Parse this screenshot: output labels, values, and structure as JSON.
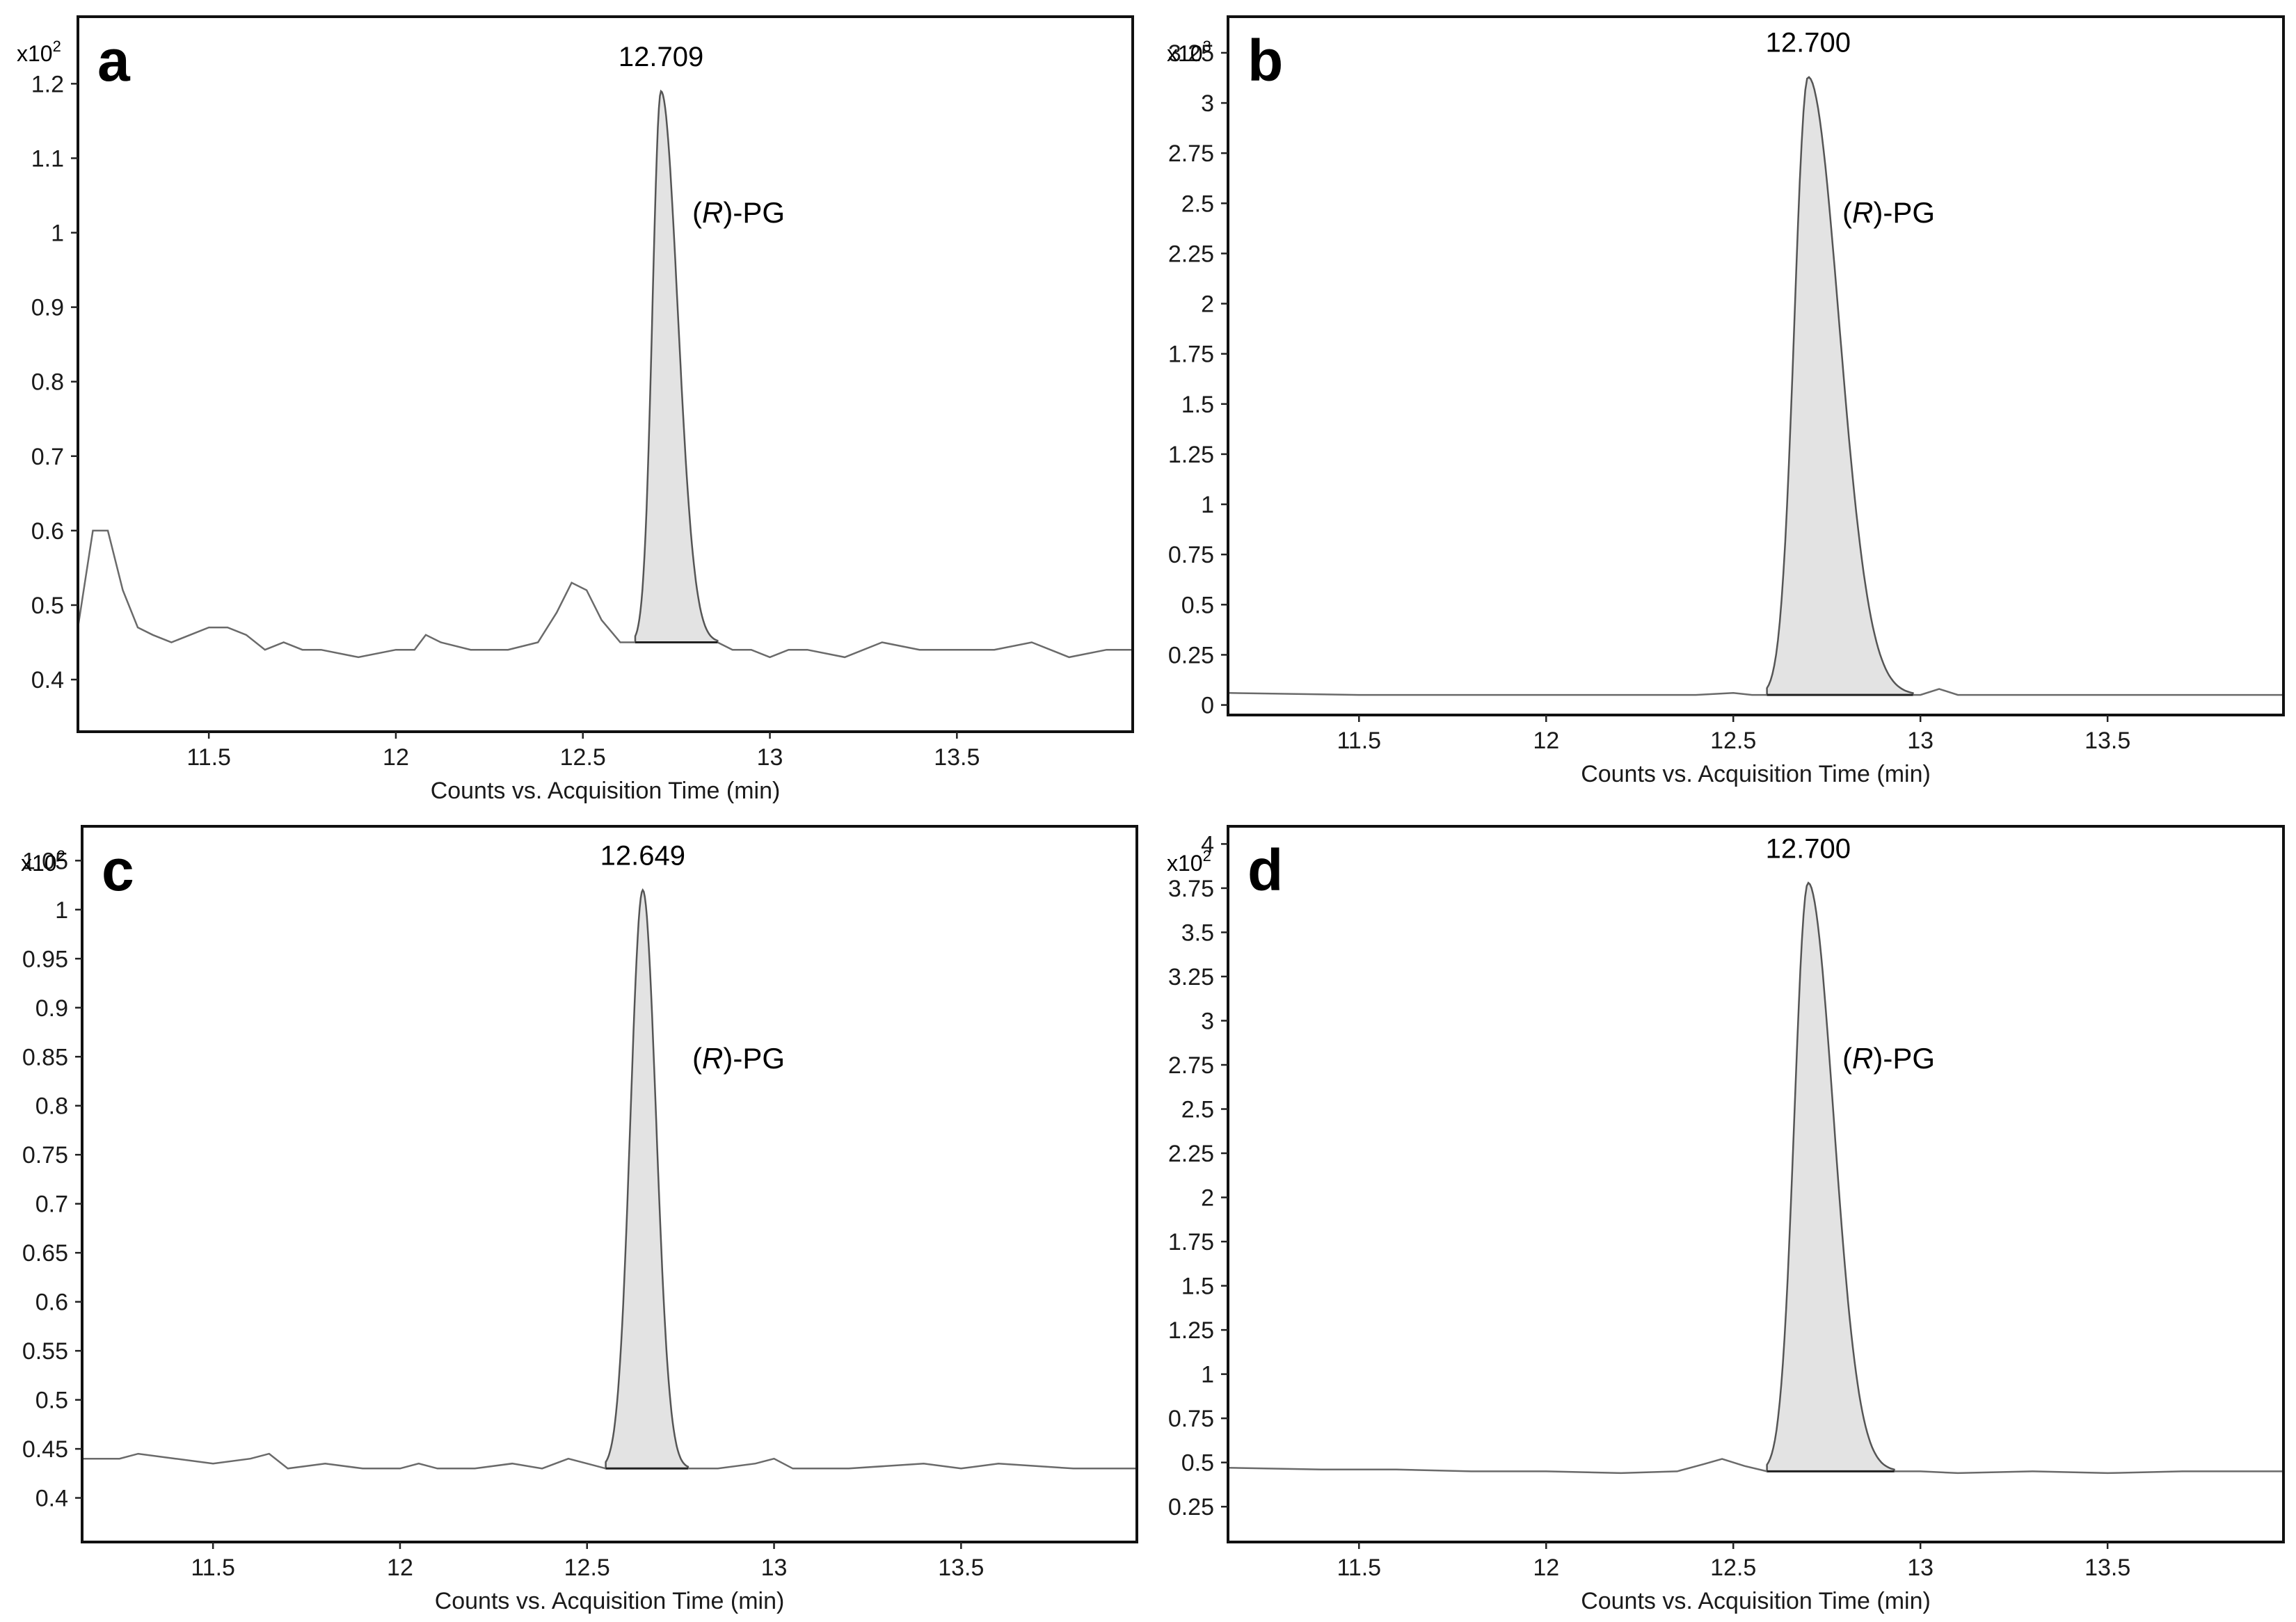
{
  "chart_data": [
    {
      "type": "line",
      "panel": "a",
      "exponent_base": "x10",
      "exponent_power": "2",
      "xlabel": "Counts vs. Acquisition Time (min)",
      "xlim": [
        11.15,
        13.97
      ],
      "ylim": [
        0.33,
        1.29
      ],
      "xticks": [
        "11.5",
        "12",
        "12.5",
        "13",
        "13.5"
      ],
      "yticks": [
        "0.4",
        "0.5",
        "0.6",
        "0.7",
        "0.8",
        "0.9",
        "1",
        "1.1",
        "1.2"
      ],
      "peak": {
        "retention_time": "12.709",
        "compound_prefix": "(",
        "compound_italic": "R",
        "compound_suffix": ")-PG",
        "start": 12.64,
        "apex": 12.709,
        "end": 12.86,
        "height": 1.19,
        "base": 0.45
      },
      "series": [
        {
          "x": [
            11.15,
            11.19,
            11.23,
            11.27,
            11.31,
            11.35,
            11.4,
            11.45,
            11.5,
            11.55,
            11.6,
            11.65,
            11.7,
            11.75,
            11.8,
            11.9,
            12.0,
            12.05,
            12.08,
            12.12,
            12.2,
            12.3,
            12.38,
            12.43,
            12.47,
            12.51,
            12.55,
            12.6,
            12.64,
            12.86,
            12.9,
            12.95,
            13.0,
            13.05,
            13.1,
            13.2,
            13.3,
            13.4,
            13.5,
            13.6,
            13.7,
            13.8,
            13.9,
            13.97
          ],
          "y": [
            0.47,
            0.6,
            0.6,
            0.52,
            0.47,
            0.46,
            0.45,
            0.46,
            0.47,
            0.47,
            0.46,
            0.44,
            0.45,
            0.44,
            0.44,
            0.43,
            0.44,
            0.44,
            0.46,
            0.45,
            0.44,
            0.44,
            0.45,
            0.49,
            0.53,
            0.52,
            0.48,
            0.45,
            0.45,
            0.45,
            0.44,
            0.44,
            0.43,
            0.44,
            0.44,
            0.43,
            0.45,
            0.44,
            0.44,
            0.44,
            0.45,
            0.43,
            0.44,
            0.44
          ]
        }
      ]
    },
    {
      "type": "line",
      "panel": "b",
      "exponent_base": "x10",
      "exponent_power": "3",
      "xlabel": "Counts vs. Acquisition Time (min)",
      "xlim": [
        11.15,
        13.97
      ],
      "ylim": [
        -0.05,
        3.43
      ],
      "xticks": [
        "11.5",
        "12",
        "12.5",
        "13",
        "13.5"
      ],
      "yticks": [
        "0",
        "0.25",
        "0.5",
        "0.75",
        "1",
        "1.25",
        "1.5",
        "1.75",
        "2",
        "2.25",
        "2.5",
        "2.75",
        "3",
        "3.25"
      ],
      "peak": {
        "retention_time": "12.700",
        "compound_prefix": "(",
        "compound_italic": "R",
        "compound_suffix": ")-PG",
        "start": 12.59,
        "apex": 12.7,
        "end": 12.98,
        "height": 3.13,
        "base": 0.05
      },
      "series": [
        {
          "x": [
            11.15,
            11.5,
            12.0,
            12.4,
            12.5,
            12.55,
            12.59,
            12.98,
            13.0,
            13.05,
            13.1,
            13.2,
            13.5,
            13.97
          ],
          "y": [
            0.06,
            0.05,
            0.05,
            0.05,
            0.06,
            0.05,
            0.05,
            0.05,
            0.05,
            0.08,
            0.05,
            0.05,
            0.05,
            0.05
          ]
        }
      ]
    },
    {
      "type": "line",
      "panel": "c",
      "exponent_base": "x10",
      "exponent_power": "2",
      "xlabel": "Counts vs. Acquisition Time (min)",
      "xlim": [
        11.15,
        13.97
      ],
      "ylim": [
        0.355,
        1.085
      ],
      "xticks": [
        "11.5",
        "12",
        "12.5",
        "13",
        "13.5"
      ],
      "yticks": [
        "0.4",
        "0.45",
        "0.5",
        "0.55",
        "0.6",
        "0.65",
        "0.7",
        "0.75",
        "0.8",
        "0.85",
        "0.9",
        "0.95",
        "1",
        "1.05"
      ],
      "peak": {
        "retention_time": "12.649",
        "compound_prefix": "(",
        "compound_italic": "R",
        "compound_suffix": ")-PG",
        "start": 12.55,
        "apex": 12.649,
        "end": 12.77,
        "height": 1.02,
        "base": 0.43
      },
      "series": [
        {
          "x": [
            11.15,
            11.25,
            11.3,
            11.4,
            11.5,
            11.6,
            11.65,
            11.7,
            11.8,
            11.9,
            12.0,
            12.05,
            12.1,
            12.2,
            12.3,
            12.38,
            12.45,
            12.5,
            12.55,
            12.77,
            12.85,
            12.95,
            13.0,
            13.05,
            13.2,
            13.4,
            13.5,
            13.6,
            13.8,
            13.97
          ],
          "y": [
            0.44,
            0.44,
            0.445,
            0.44,
            0.435,
            0.44,
            0.445,
            0.43,
            0.435,
            0.43,
            0.43,
            0.435,
            0.43,
            0.43,
            0.435,
            0.43,
            0.44,
            0.435,
            0.43,
            0.43,
            0.43,
            0.435,
            0.44,
            0.43,
            0.43,
            0.435,
            0.43,
            0.435,
            0.43,
            0.43
          ]
        }
      ]
    },
    {
      "type": "line",
      "panel": "d",
      "exponent_base": "x10",
      "exponent_power": "2",
      "xlabel": "Counts vs. Acquisition Time (min)",
      "xlim": [
        11.15,
        13.97
      ],
      "ylim": [
        0.05,
        4.1
      ],
      "xticks": [
        "11.5",
        "12",
        "12.5",
        "13",
        "13.5"
      ],
      "yticks": [
        "0.25",
        "0.5",
        "0.75",
        "1",
        "1.25",
        "1.5",
        "1.75",
        "2",
        "2.25",
        "2.5",
        "2.75",
        "3",
        "3.25",
        "3.5",
        "3.75",
        "4"
      ],
      "peak": {
        "retention_time": "12.700",
        "compound_prefix": "(",
        "compound_italic": "R",
        "compound_suffix": ")-PG",
        "start": 12.59,
        "apex": 12.7,
        "end": 12.93,
        "height": 3.78,
        "base": 0.45
      },
      "series": [
        {
          "x": [
            11.15,
            11.4,
            11.6,
            11.8,
            12.0,
            12.2,
            12.35,
            12.42,
            12.47,
            12.53,
            12.59,
            12.93,
            13.0,
            13.1,
            13.3,
            13.5,
            13.7,
            13.97
          ],
          "y": [
            0.47,
            0.46,
            0.46,
            0.45,
            0.45,
            0.44,
            0.45,
            0.49,
            0.52,
            0.48,
            0.45,
            0.45,
            0.45,
            0.44,
            0.45,
            0.44,
            0.45,
            0.45
          ]
        }
      ]
    }
  ]
}
